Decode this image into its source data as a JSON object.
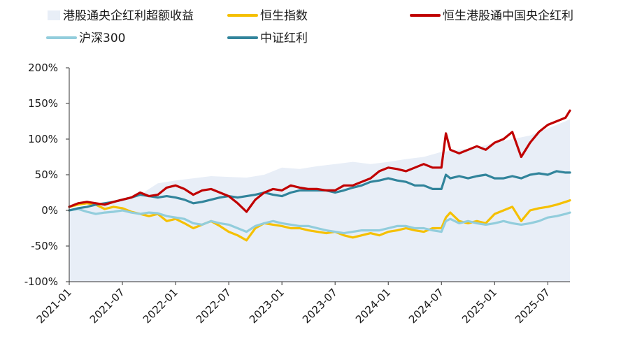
{
  "chart_data": {
    "type": "line",
    "title": "",
    "xlabel": "",
    "ylabel": "",
    "x_ticks": [
      "2021-01",
      "2021-07",
      "2022-01",
      "2022-07",
      "2023-01",
      "2023-07",
      "2024-01",
      "2024-07",
      "2025-01",
      "2025-07"
    ],
    "y_ticks": [
      "200%",
      "150%",
      "100%",
      "50%",
      "0%",
      "-50%",
      "-100%"
    ],
    "ylim": [
      -100,
      200
    ],
    "x_range_months": [
      0,
      56.5
    ],
    "legend_position": "top",
    "series": [
      {
        "name": "港股通央企红利超额收益",
        "kind": "area",
        "color": "#e8eef7",
        "x": [
          0,
          2,
          4,
          6,
          8,
          9,
          10,
          12,
          14,
          16,
          18,
          20,
          22,
          24,
          26,
          28,
          30,
          32,
          34,
          36,
          38,
          40,
          42,
          44,
          46,
          48,
          50,
          52,
          54,
          56,
          56.5
        ],
        "y": [
          2,
          6,
          10,
          15,
          22,
          30,
          38,
          42,
          45,
          48,
          47,
          46,
          50,
          60,
          58,
          62,
          65,
          68,
          65,
          68,
          72,
          75,
          82,
          85,
          88,
          95,
          100,
          105,
          115,
          125,
          128
        ]
      },
      {
        "name": "恒生指数",
        "kind": "line",
        "color": "#f5c000",
        "x": [
          0,
          1,
          2,
          3,
          4,
          5,
          6,
          7,
          8,
          9,
          10,
          11,
          12,
          13,
          14,
          15,
          16,
          17,
          18,
          19,
          20,
          21,
          22,
          23,
          24,
          25,
          26,
          27,
          28,
          29,
          30,
          31,
          32,
          33,
          34,
          35,
          36,
          37,
          38,
          39,
          40,
          41,
          42,
          42.5,
          43,
          44,
          45,
          46,
          47,
          48,
          49,
          50,
          51,
          52,
          53,
          54,
          55,
          56,
          56.5
        ],
        "y": [
          5,
          8,
          10,
          8,
          2,
          5,
          3,
          -2,
          -5,
          -8,
          -5,
          -15,
          -12,
          -18,
          -25,
          -20,
          -15,
          -22,
          -30,
          -35,
          -42,
          -25,
          -18,
          -20,
          -22,
          -25,
          -25,
          -28,
          -30,
          -32,
          -30,
          -35,
          -38,
          -35,
          -32,
          -35,
          -30,
          -28,
          -25,
          -28,
          -30,
          -25,
          -25,
          -10,
          -3,
          -15,
          -18,
          -15,
          -18,
          -5,
          0,
          5,
          -15,
          0,
          3,
          5,
          8,
          12,
          14
        ]
      },
      {
        "name": "恒生港股通中国央企红利",
        "kind": "line",
        "color": "#c00000",
        "x": [
          0,
          1,
          2,
          3,
          4,
          5,
          6,
          7,
          8,
          9,
          10,
          11,
          12,
          13,
          14,
          15,
          16,
          17,
          18,
          19,
          20,
          21,
          22,
          23,
          24,
          25,
          26,
          27,
          28,
          29,
          30,
          31,
          32,
          33,
          34,
          35,
          36,
          37,
          38,
          39,
          40,
          41,
          42,
          42.5,
          43,
          44,
          45,
          46,
          47,
          48,
          49,
          50,
          51,
          52,
          53,
          54,
          55,
          56,
          56.5
        ],
        "y": [
          5,
          10,
          12,
          10,
          8,
          12,
          15,
          18,
          25,
          20,
          22,
          32,
          35,
          30,
          22,
          28,
          30,
          25,
          20,
          10,
          -2,
          15,
          25,
          30,
          28,
          35,
          32,
          30,
          30,
          28,
          28,
          35,
          35,
          40,
          45,
          55,
          60,
          58,
          55,
          60,
          65,
          60,
          60,
          108,
          85,
          80,
          85,
          90,
          85,
          95,
          100,
          110,
          75,
          95,
          110,
          120,
          125,
          130,
          140
        ]
      },
      {
        "name": "沪深300",
        "kind": "line",
        "color": "#92cddc",
        "x": [
          0,
          1,
          2,
          3,
          4,
          5,
          6,
          7,
          8,
          9,
          10,
          11,
          12,
          13,
          14,
          15,
          16,
          17,
          18,
          19,
          20,
          21,
          22,
          23,
          24,
          25,
          26,
          27,
          28,
          29,
          30,
          31,
          32,
          33,
          34,
          35,
          36,
          37,
          38,
          39,
          40,
          41,
          42,
          42.5,
          43,
          44,
          45,
          46,
          47,
          48,
          49,
          50,
          51,
          52,
          53,
          54,
          55,
          56,
          56.5
        ],
        "y": [
          0,
          2,
          -2,
          -5,
          -3,
          -2,
          0,
          -3,
          -5,
          -3,
          -4,
          -8,
          -10,
          -12,
          -18,
          -20,
          -15,
          -18,
          -20,
          -25,
          -30,
          -22,
          -18,
          -15,
          -18,
          -20,
          -22,
          -22,
          -25,
          -28,
          -30,
          -32,
          -30,
          -28,
          -28,
          -28,
          -25,
          -22,
          -22,
          -25,
          -25,
          -28,
          -30,
          -15,
          -12,
          -18,
          -15,
          -18,
          -20,
          -18,
          -15,
          -18,
          -20,
          -18,
          -15,
          -10,
          -8,
          -5,
          -3
        ]
      },
      {
        "name": "中证红利",
        "kind": "line",
        "color": "#31849b",
        "x": [
          0,
          1,
          2,
          3,
          4,
          5,
          6,
          7,
          8,
          9,
          10,
          11,
          12,
          13,
          14,
          15,
          16,
          17,
          18,
          19,
          20,
          21,
          22,
          23,
          24,
          25,
          26,
          27,
          28,
          29,
          30,
          31,
          32,
          33,
          34,
          35,
          36,
          37,
          38,
          39,
          40,
          41,
          42,
          42.5,
          43,
          44,
          45,
          46,
          47,
          48,
          49,
          50,
          51,
          52,
          53,
          54,
          55,
          56,
          56.5
        ],
        "y": [
          0,
          3,
          5,
          8,
          10,
          12,
          15,
          18,
          22,
          20,
          18,
          20,
          18,
          15,
          10,
          12,
          15,
          18,
          20,
          18,
          20,
          22,
          25,
          22,
          20,
          25,
          28,
          28,
          28,
          28,
          25,
          28,
          32,
          35,
          40,
          42,
          45,
          42,
          40,
          35,
          35,
          30,
          30,
          50,
          45,
          48,
          45,
          48,
          50,
          45,
          45,
          48,
          45,
          50,
          52,
          50,
          55,
          53,
          53
        ]
      }
    ]
  }
}
